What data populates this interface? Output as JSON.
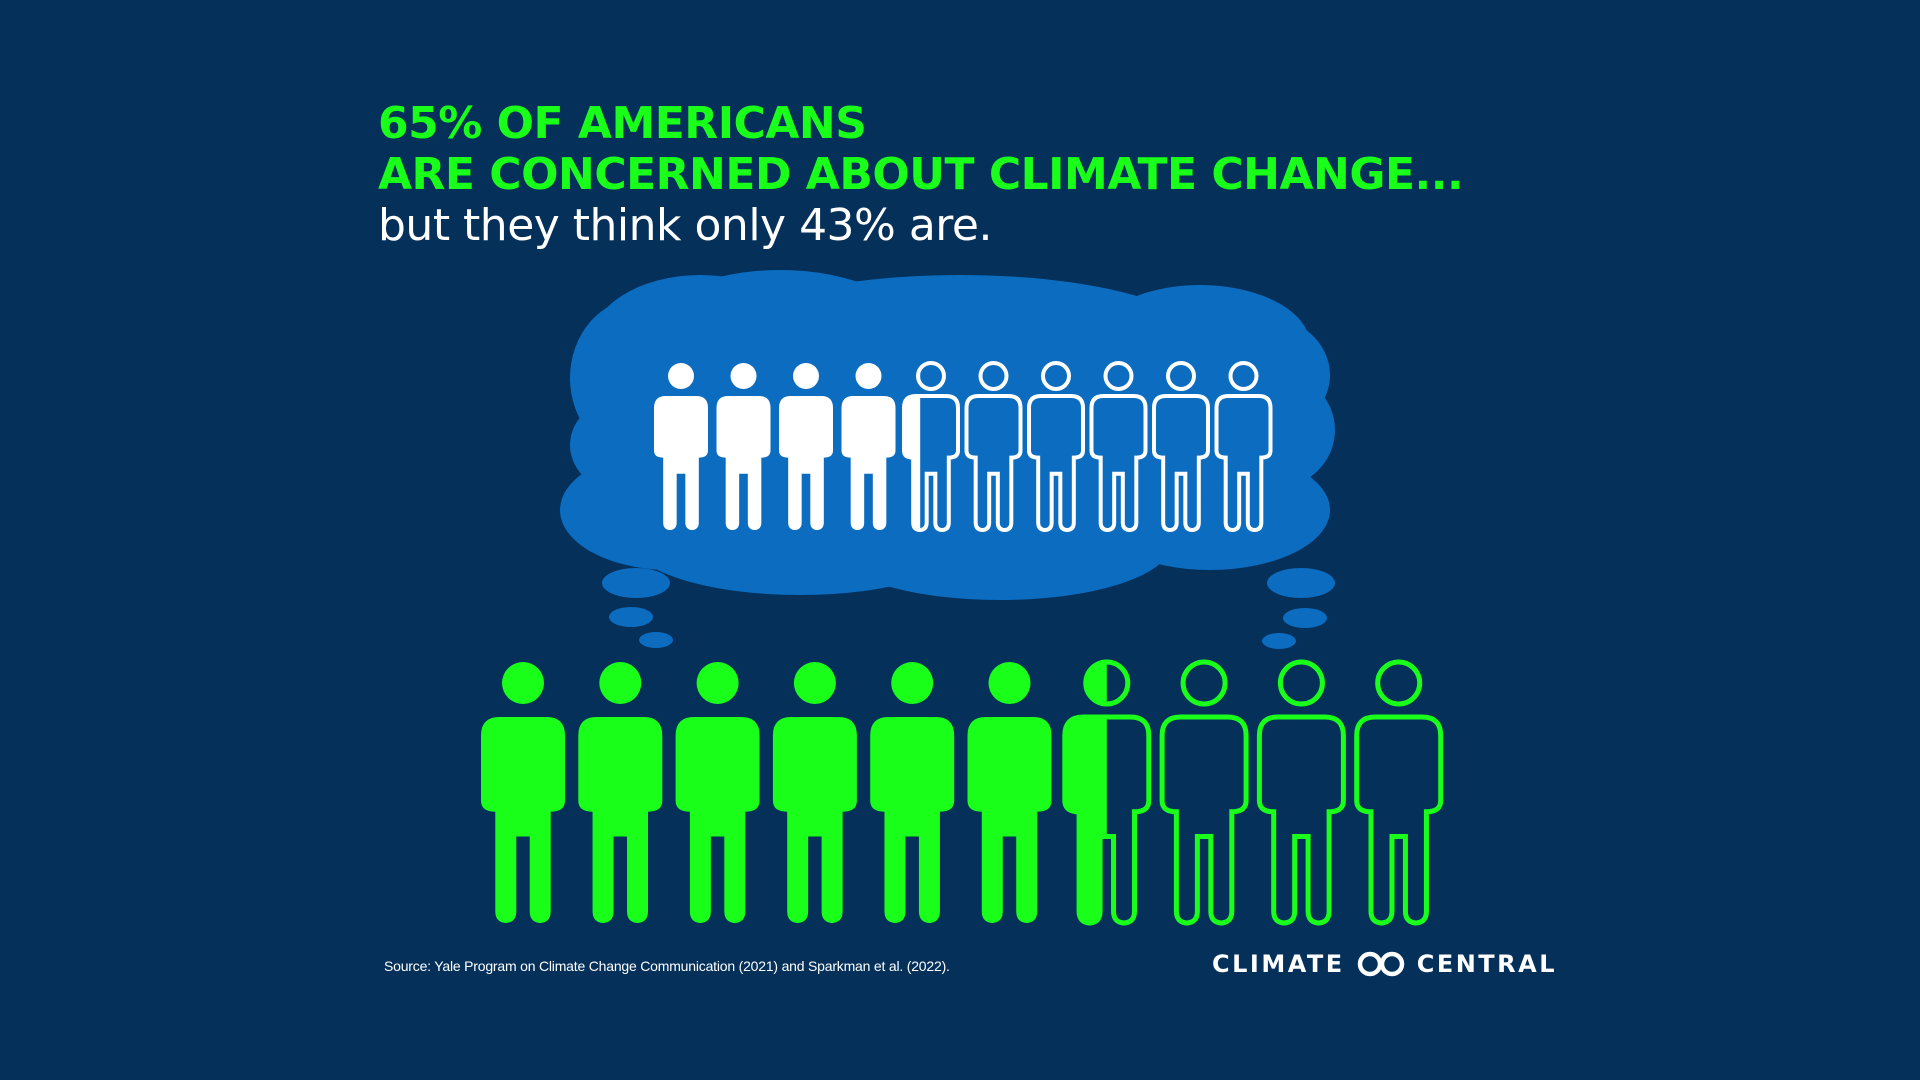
{
  "headline": {
    "line1": "65% OF AMERICANS",
    "line2": "ARE CONCERNED ABOUT CLIMATE CHANGE...",
    "line3": "but they think only 43% are."
  },
  "chart_data": [
    {
      "type": "pictograph",
      "icon_count": 10,
      "value_percent": 65,
      "color": "#1aff1a"
    },
    {
      "type": "pictograph",
      "icon_count": 10,
      "value_percent": 43,
      "color": "#ffffff"
    }
  ],
  "colors": {
    "background": "#04305a",
    "cloud": "#0b6cc0",
    "green": "#1aff1a",
    "white": "#ffffff"
  },
  "source": "Source: Yale Program on Climate Change Communication (2021) and Sparkman et al. (2022).",
  "brand": {
    "left": "CLIMATE",
    "right": "CENTRAL",
    "logo_icon": "linked-rings-icon"
  }
}
